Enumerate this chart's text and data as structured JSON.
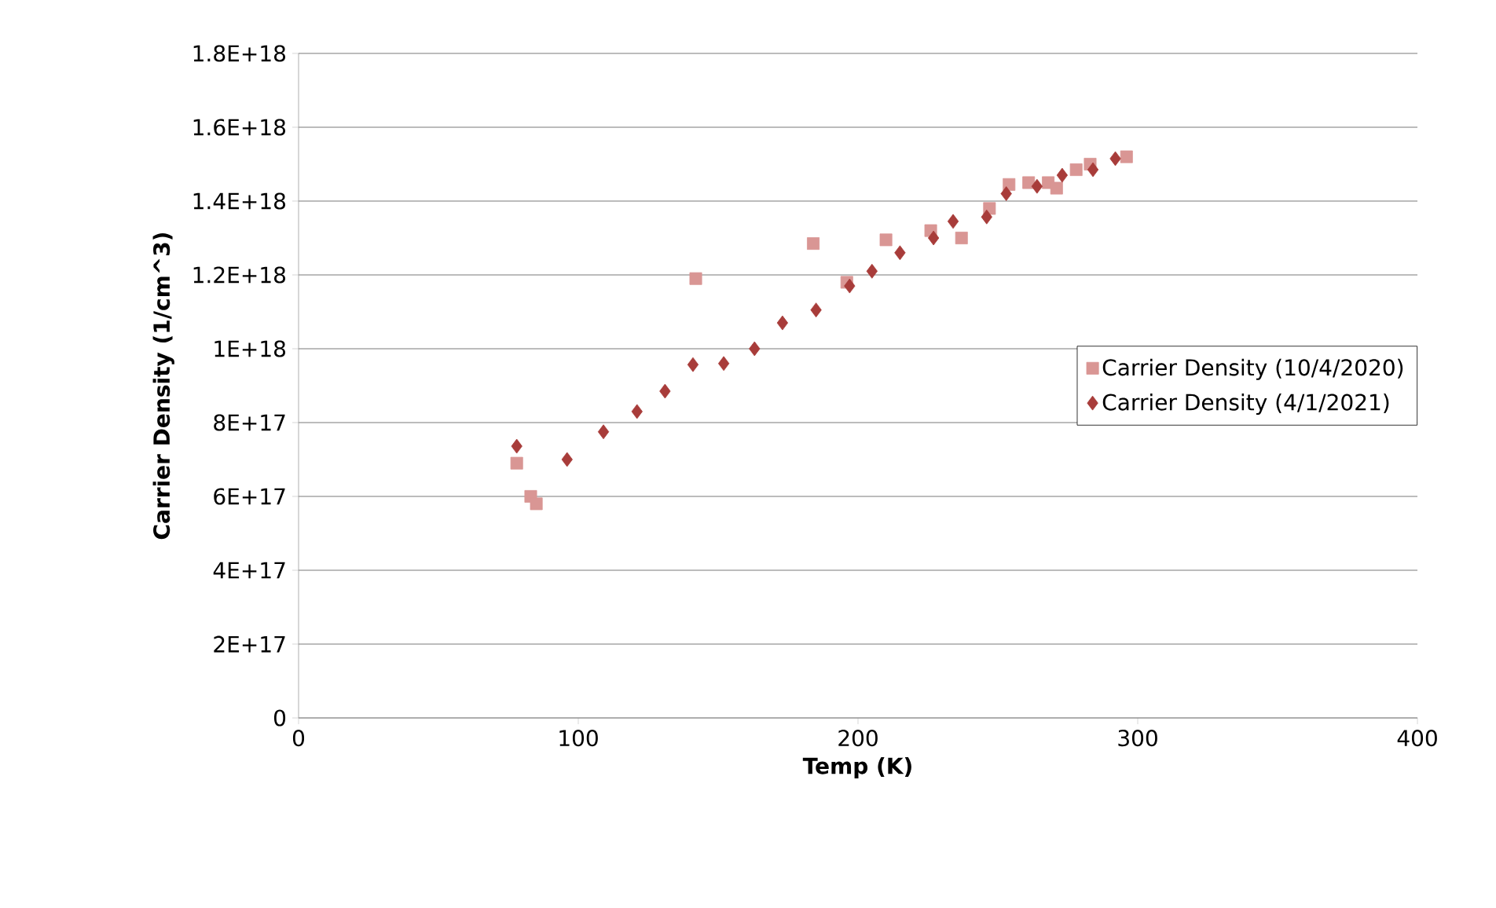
{
  "chart_data": {
    "type": "scatter",
    "xlabel": "Temp (K)",
    "ylabel": "Carrier Density (1/cm^3)",
    "xlim": [
      0,
      400
    ],
    "xticks": [
      0,
      100,
      200,
      300,
      400
    ],
    "ylim": [
      0,
      1.8e+18
    ],
    "yticks": [
      {
        "value": 0,
        "label": "0"
      },
      {
        "value": 2e+17,
        "label": "2E+17"
      },
      {
        "value": 4e+17,
        "label": "4E+17"
      },
      {
        "value": 6e+17,
        "label": "6E+17"
      },
      {
        "value": 8e+17,
        "label": "8E+17"
      },
      {
        "value": 1e+18,
        "label": "1E+18"
      },
      {
        "value": 1.2e+18,
        "label": "1.2E+18"
      },
      {
        "value": 1.4e+18,
        "label": "1.4E+18"
      },
      {
        "value": 1.6e+18,
        "label": "1.6E+18"
      },
      {
        "value": 1.8e+18,
        "label": "1.8E+18"
      }
    ],
    "grid": "y",
    "legend": "right",
    "series": [
      {
        "name": "Carrier Density (10/4/2020)",
        "color": "#d99694",
        "marker": "square",
        "x": [
          78,
          83,
          85,
          142,
          184,
          196,
          210,
          226,
          237,
          247,
          254,
          261,
          268,
          271,
          278,
          283,
          296
        ],
        "values": [
          6.9e+17,
          6e+17,
          5.8e+17,
          1.19e+18,
          1.285e+18,
          1.18e+18,
          1.295e+18,
          1.32e+18,
          1.3e+18,
          1.38e+18,
          1.445e+18,
          1.45e+18,
          1.45e+18,
          1.435e+18,
          1.485e+18,
          1.5e+18,
          1.52e+18
        ]
      },
      {
        "name": "Carrier Density (4/1/2021)",
        "color": "#a83c3a",
        "marker": "diamond",
        "x": [
          78,
          96,
          109,
          121,
          131,
          141,
          152,
          163,
          173,
          185,
          197,
          205,
          215,
          227,
          234,
          246,
          253,
          264,
          273,
          284,
          292
        ],
        "values": [
          7.36e+17,
          7e+17,
          7.75e+17,
          8.3e+17,
          8.85e+17,
          9.57e+17,
          9.6e+17,
          1e+18,
          1.07e+18,
          1.105e+18,
          1.17e+18,
          1.21e+18,
          1.26e+18,
          1.3e+18,
          1.345e+18,
          1.357e+18,
          1.42e+18,
          1.44e+18,
          1.47e+18,
          1.485e+18,
          1.515e+18
        ]
      }
    ]
  }
}
